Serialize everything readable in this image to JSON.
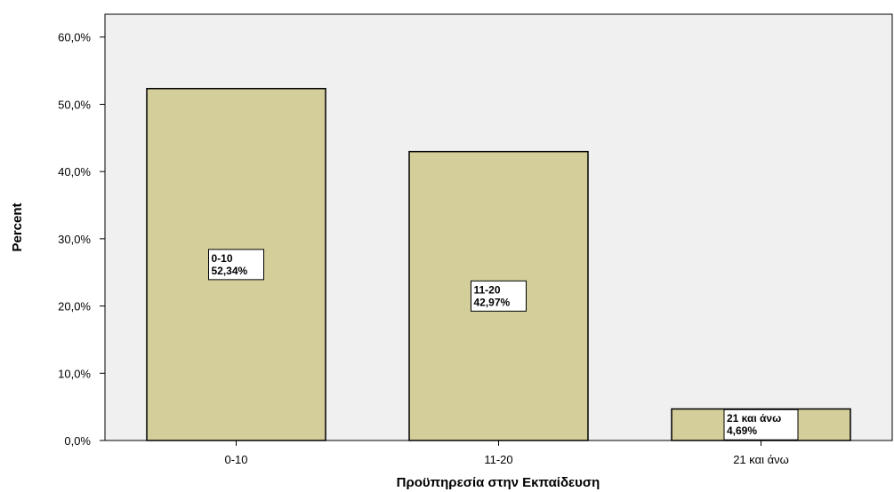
{
  "chart_data": {
    "type": "bar",
    "title": "",
    "xlabel": "Προϋπηρεσία στην Εκπαίδευση",
    "ylabel": "Percent",
    "categories": [
      "0-10",
      "11-20",
      "21 και άνω"
    ],
    "values": [
      52.34,
      42.97,
      4.69
    ],
    "data_labels": [
      {
        "category": "0-10",
        "value": "52,34%"
      },
      {
        "category": "11-20",
        "value": "42,97%"
      },
      {
        "category": "21 και άνω",
        "value": "4,69%"
      }
    ],
    "yticks": [
      "0,0%",
      "10,0%",
      "20,0%",
      "30,0%",
      "40,0%",
      "50,0%",
      "60,0%"
    ],
    "ylim": [
      0,
      63.4
    ],
    "grid": false,
    "legend": "none",
    "colors": {
      "plot_background": "#f0f0f0",
      "bar_fill": "#d3ce9a",
      "bar_stroke": "#000000"
    }
  }
}
